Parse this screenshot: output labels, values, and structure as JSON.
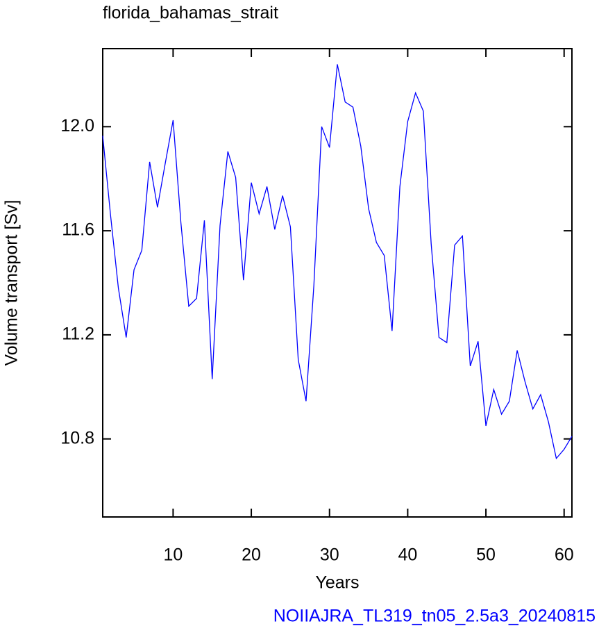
{
  "chart_data": {
    "type": "line",
    "title": "florida_bahamas_strait",
    "x_label": "Years",
    "y_label": "Volume transport [Sv]",
    "annotation": "NOIIAJRA_TL319_tn05_2.5a3_20240815",
    "annotation_color": "#0000ff",
    "xlim": [
      1,
      61
    ],
    "xticks": [
      10,
      20,
      30,
      40,
      50,
      60
    ],
    "ylim": [
      10.5,
      12.3
    ],
    "yticks": [
      {
        "value": 12,
        "label": "12.0"
      },
      11.6,
      11.2,
      10.8
    ],
    "x": [
      1,
      2,
      3,
      4,
      5,
      6,
      7,
      8,
      9,
      10,
      11,
      12,
      13,
      14,
      15,
      16,
      17,
      18,
      19,
      20,
      21,
      22,
      23,
      24,
      25,
      26,
      27,
      28,
      29,
      30,
      31,
      32,
      33,
      34,
      35,
      36,
      37,
      38,
      39,
      40,
      41,
      42,
      43,
      44,
      45,
      46,
      47,
      48,
      49,
      50,
      51,
      52,
      53,
      54,
      55,
      56,
      57,
      58,
      59,
      60,
      61
    ],
    "series": [
      {
        "color": "#0000ff",
        "values": [
          11.965,
          11.66,
          11.38,
          11.19,
          11.45,
          11.525,
          11.865,
          11.69,
          11.86,
          12.025,
          11.63,
          11.31,
          11.34,
          11.64,
          11.03,
          11.62,
          11.905,
          11.805,
          11.41,
          11.785,
          11.665,
          11.77,
          11.605,
          11.735,
          11.615,
          11.105,
          10.945,
          11.39,
          12.0,
          11.92,
          12.24,
          12.095,
          12.075,
          11.925,
          11.685,
          11.555,
          11.505,
          11.215,
          11.77,
          12.02,
          12.13,
          12.06,
          11.55,
          11.19,
          11.17,
          11.545,
          11.58,
          11.08,
          11.175,
          10.85,
          10.99,
          10.895,
          10.945,
          11.14,
          11.02,
          10.915,
          10.97,
          10.865,
          10.725,
          10.76,
          10.81
        ]
      }
    ]
  }
}
